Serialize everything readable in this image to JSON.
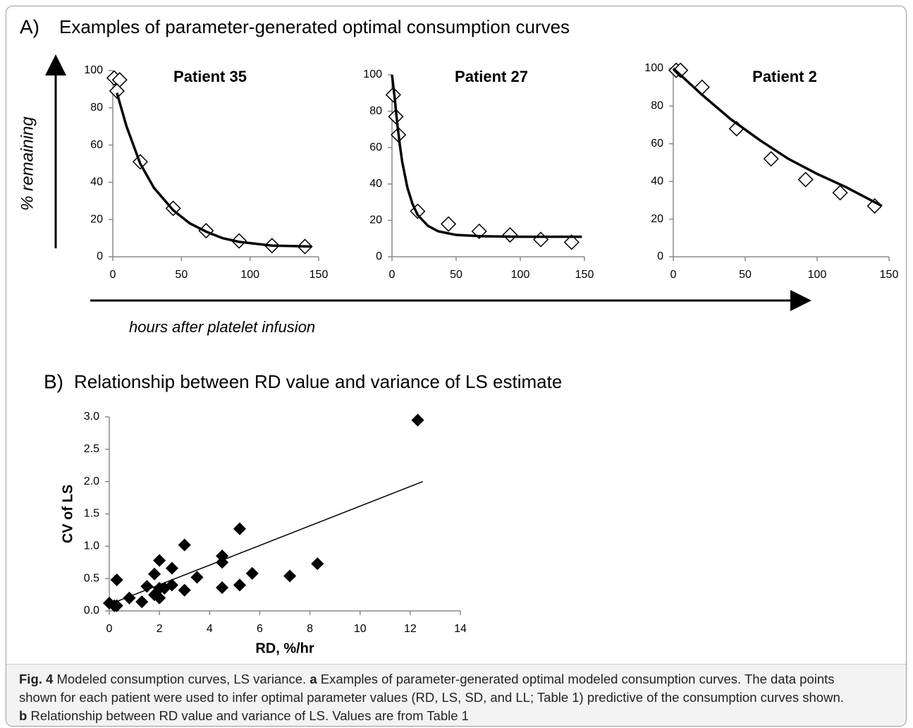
{
  "panel_a": {
    "label": "A)",
    "title": "Examples of parameter-generated optimal consumption curves",
    "y_label": "% remaining",
    "x_label": "hours after platelet infusion"
  },
  "panel_b": {
    "label": "B)",
    "title": "Relationship between RD value and variance of LS estimate"
  },
  "chart_data": [
    {
      "type": "scatter",
      "title": "Patient 35",
      "xlim": [
        0,
        150
      ],
      "ylim": [
        0,
        100
      ],
      "xticks": [
        0,
        50,
        100,
        150
      ],
      "yticks": [
        0,
        20,
        40,
        60,
        80,
        100
      ],
      "series": [
        {
          "marker": "open-diamond",
          "color": "#000000",
          "x": [
            1,
            5,
            3,
            20,
            44,
            68,
            92,
            116,
            140
          ],
          "values": [
            96,
            95,
            89,
            51,
            26,
            14,
            8.5,
            6,
            5.5
          ]
        },
        {
          "style": "line",
          "color": "#000000",
          "x": [
            3,
            10,
            20,
            30,
            44,
            56,
            68,
            80,
            92,
            104,
            116,
            130,
            145
          ],
          "values": [
            88,
            70,
            50,
            37,
            25,
            18,
            13.5,
            10,
            8,
            7,
            6,
            5.8,
            5.5
          ]
        }
      ]
    },
    {
      "type": "scatter",
      "title": "Patient 27",
      "xlim": [
        0,
        150
      ],
      "ylim": [
        0,
        100
      ],
      "xticks": [
        0,
        50,
        100,
        150
      ],
      "yticks": [
        0,
        20,
        40,
        60,
        80,
        100
      ],
      "series": [
        {
          "marker": "open-diamond",
          "color": "#000000",
          "x": [
            1,
            3,
            5,
            20,
            44,
            68,
            92,
            116,
            140
          ],
          "values": [
            89,
            77,
            67,
            25,
            18,
            14,
            12,
            9.5,
            8
          ]
        },
        {
          "style": "line",
          "color": "#000000",
          "x": [
            0,
            2,
            4,
            6,
            8,
            12,
            16,
            20,
            28,
            36,
            50,
            70,
            100,
            148
          ],
          "values": [
            100,
            88,
            74,
            62,
            52,
            38,
            29,
            23,
            17,
            14,
            12,
            11.3,
            11,
            11
          ]
        }
      ]
    },
    {
      "type": "scatter",
      "title": "Patient 2",
      "xlim": [
        0,
        150
      ],
      "ylim": [
        0,
        100
      ],
      "xticks": [
        0,
        50,
        100,
        150
      ],
      "yticks": [
        0,
        20,
        40,
        60,
        80,
        100
      ],
      "series": [
        {
          "marker": "open-diamond",
          "color": "#000000",
          "x": [
            2,
            5,
            20,
            44,
            68,
            92,
            116,
            140
          ],
          "values": [
            99,
            99,
            90,
            68,
            52,
            41,
            34,
            27
          ]
        },
        {
          "style": "line",
          "color": "#000000",
          "x": [
            0,
            20,
            40,
            60,
            80,
            100,
            120,
            145
          ],
          "values": [
            100,
            86,
            73,
            62,
            52,
            44,
            37,
            27
          ]
        }
      ]
    },
    {
      "type": "scatter",
      "x_label": "RD, %/hr",
      "y_label": "CV of LS",
      "xlim": [
        0,
        14
      ],
      "ylim": [
        0,
        3
      ],
      "xticks": [
        0,
        2,
        4,
        6,
        8,
        10,
        12,
        14
      ],
      "yticks": [
        {
          "value": 0,
          "label": "0.0"
        },
        {
          "value": 0.5,
          "label": "0.5"
        },
        {
          "value": 1,
          "label": "1.0"
        },
        {
          "value": 1.5,
          "label": "1.5"
        },
        {
          "value": 2,
          "label": "2.0"
        },
        {
          "value": 2.5,
          "label": "2.5"
        },
        {
          "value": 3,
          "label": "3.0"
        }
      ],
      "series": [
        {
          "marker": "filled-diamond",
          "color": "#000000",
          "x": [
            0,
            0.2,
            0.3,
            0.3,
            0.8,
            1.3,
            1.5,
            1.8,
            1.8,
            2,
            2,
            2,
            2.2,
            2.5,
            2.5,
            3,
            3,
            3.5,
            4.5,
            4.5,
            4.5,
            5.2,
            5.2,
            5.7,
            7.2,
            8.3,
            12.3
          ],
          "values": [
            0.12,
            0.08,
            0.48,
            0.08,
            0.2,
            0.14,
            0.38,
            0.57,
            0.25,
            0.78,
            0.35,
            0.2,
            0.35,
            0.4,
            0.66,
            1.02,
            0.32,
            0.52,
            0.85,
            0.75,
            0.36,
            1.27,
            0.4,
            0.58,
            0.54,
            0.73,
            2.95
          ]
        },
        {
          "style": "line",
          "color": "#000000",
          "x": [
            0,
            12.5
          ],
          "values": [
            0.1,
            2.0
          ]
        }
      ]
    }
  ],
  "caption": {
    "lines": [
      [
        {
          "text": "Fig. 4",
          "bold": true
        },
        {
          "text": "Modeled consumption curves, LS variance."
        },
        {
          "text": "a",
          "bold": true
        },
        {
          "text": "Examples of parameter-generated optimal modeled consumption curves. The data points"
        }
      ],
      [
        {
          "text": "shown for each patient were used to infer optimal parameter values (RD, LS, SD, and LL; Table 1) predictive of the consumption curves shown."
        }
      ],
      [
        {
          "text": "b",
          "bold": true
        },
        {
          "text": "Relationship between RD value and variance of LS. Values are from Table 1"
        }
      ]
    ]
  }
}
